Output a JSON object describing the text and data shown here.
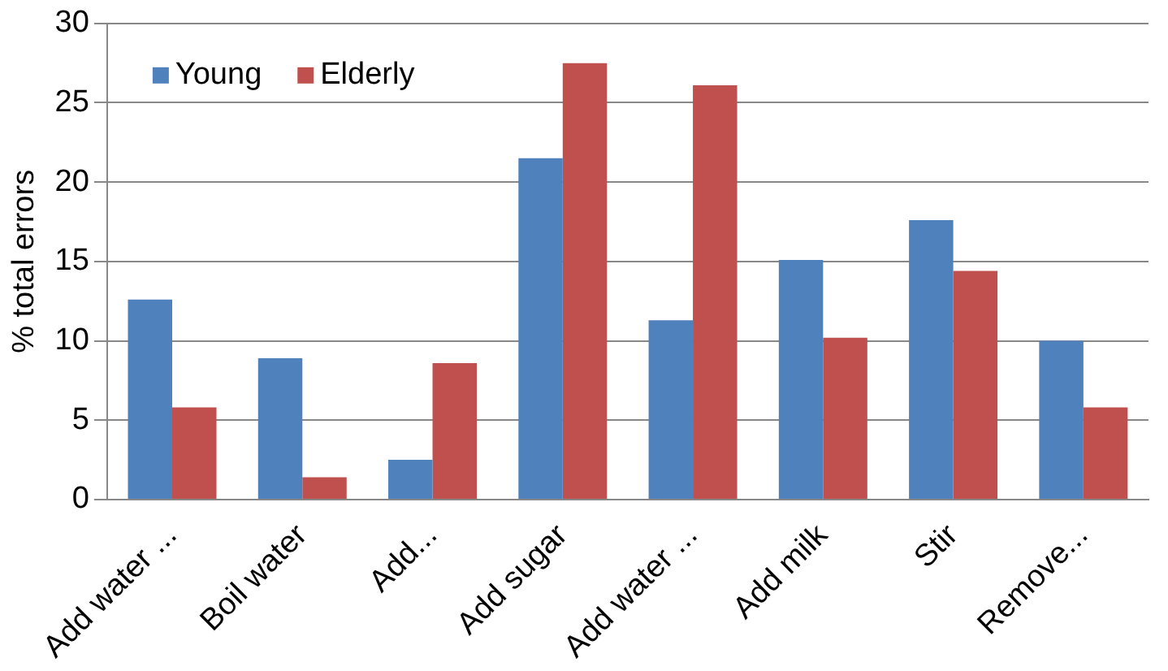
{
  "chart_data": {
    "type": "bar",
    "ylabel": "% total errors",
    "categories": [
      "Add water ...",
      "Boil water",
      "Add...",
      "Add sugar",
      "Add water ...",
      "Add milk",
      "Stir",
      "Remove..."
    ],
    "series": [
      {
        "name": "Young",
        "color": "#4f81bd",
        "values": [
          12.6,
          8.9,
          2.5,
          21.5,
          11.3,
          15.1,
          17.6,
          10
        ]
      },
      {
        "name": "Elderly",
        "color": "#c0504d",
        "values": [
          5.8,
          1.4,
          8.6,
          27.5,
          26.1,
          10.2,
          14.4,
          5.8
        ]
      }
    ],
    "ylim": [
      0,
      30
    ],
    "yticks": [
      0,
      5,
      10,
      15,
      20,
      25,
      30
    ],
    "grid": "y",
    "legend": "top left"
  }
}
